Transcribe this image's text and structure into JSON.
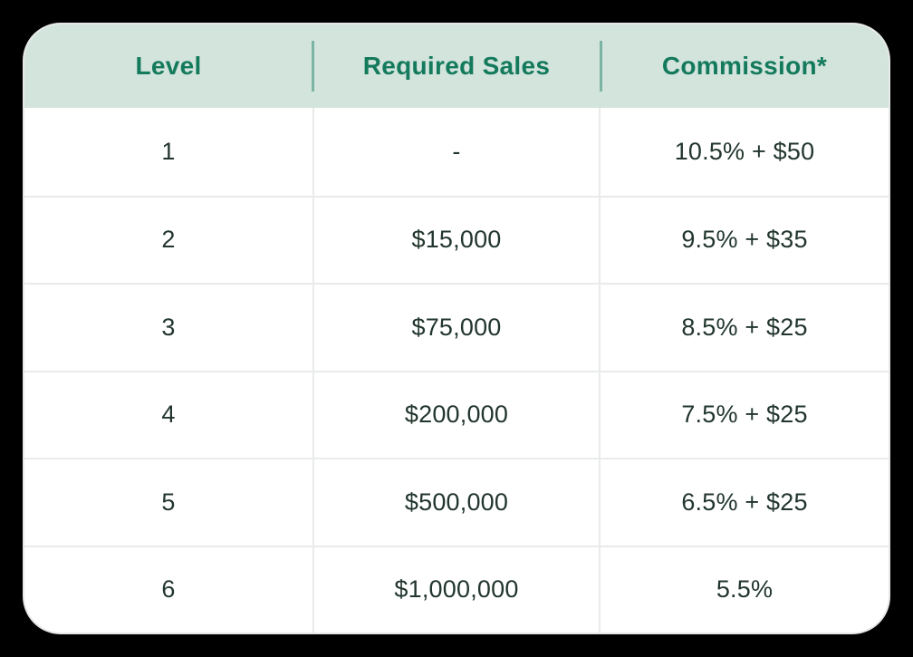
{
  "colors": {
    "page_background": "#000000",
    "card_background": "#ffffff",
    "header_background": "#d3e4dd",
    "header_text": "#147a5c",
    "header_divider": "#7cb4a4",
    "body_text": "#22362d",
    "grid_line": "#e9eaea"
  },
  "table": {
    "columns": [
      {
        "label": "Level"
      },
      {
        "label": "Required Sales"
      },
      {
        "label": "Commission*"
      }
    ],
    "rows": [
      {
        "level": "1",
        "required_sales": "-",
        "commission": "10.5% + $50"
      },
      {
        "level": "2",
        "required_sales": "$15,000",
        "commission": "9.5% + $35"
      },
      {
        "level": "3",
        "required_sales": "$75,000",
        "commission": "8.5% + $25"
      },
      {
        "level": "4",
        "required_sales": "$200,000",
        "commission": "7.5% + $25"
      },
      {
        "level": "5",
        "required_sales": "$500,000",
        "commission": "6.5% + $25"
      },
      {
        "level": "6",
        "required_sales": "$1,000,000",
        "commission": "5.5%"
      }
    ]
  },
  "chart_data": {
    "type": "table",
    "title": "",
    "columns": [
      "Level",
      "Required Sales",
      "Commission*"
    ],
    "rows": [
      [
        "1",
        "-",
        "10.5% + $50"
      ],
      [
        "2",
        "$15,000",
        "9.5% + $35"
      ],
      [
        "3",
        "$75,000",
        "8.5% + $25"
      ],
      [
        "4",
        "$200,000",
        "7.5% + $25"
      ],
      [
        "5",
        "$500,000",
        "6.5% + $25"
      ],
      [
        "6",
        "$1,000,000",
        "5.5%"
      ]
    ]
  }
}
